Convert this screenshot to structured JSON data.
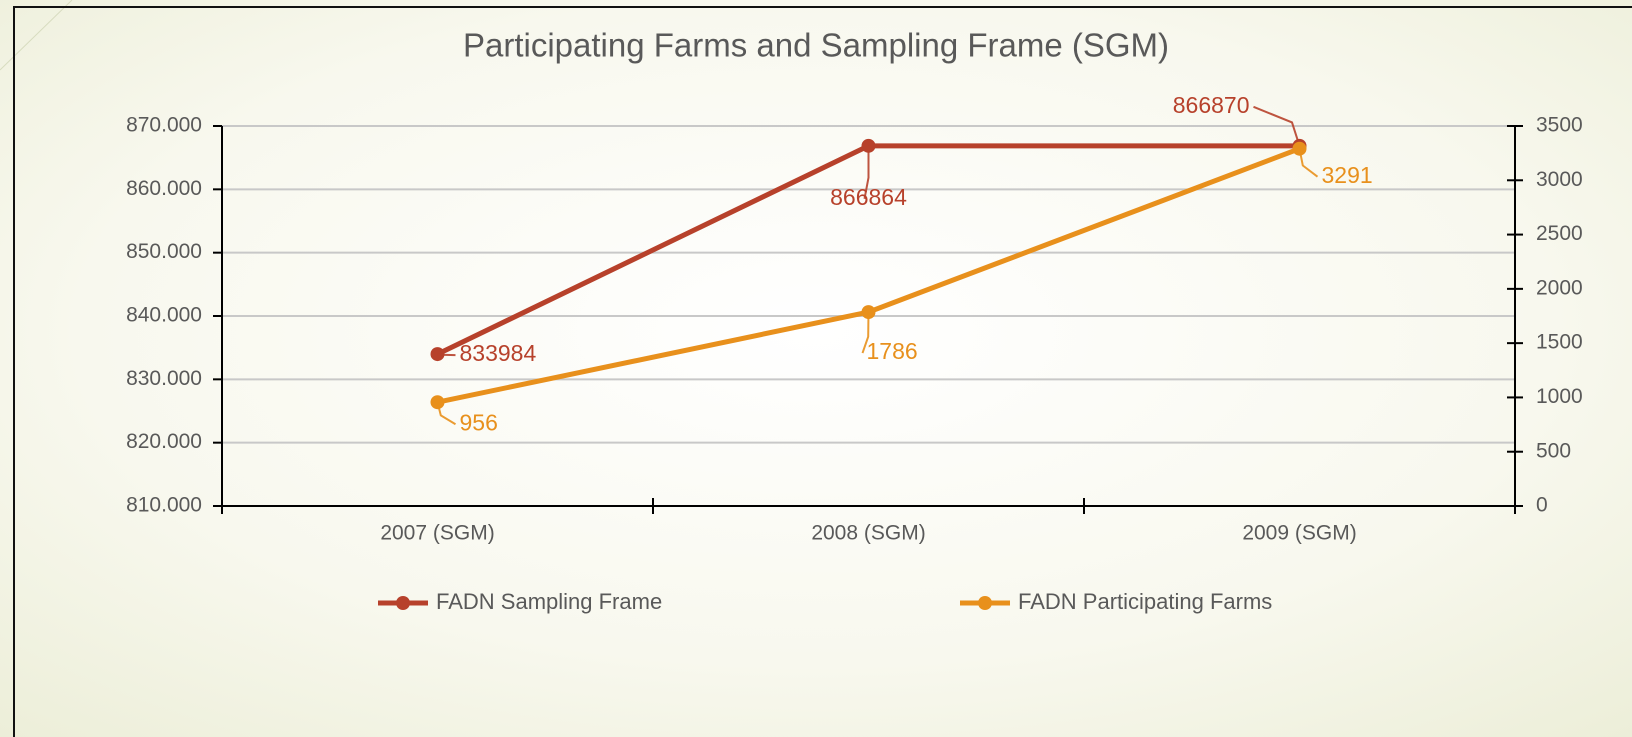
{
  "chart_data": {
    "type": "line",
    "title": "Participating Farms and Sampling Frame (SGM)",
    "categories": [
      "2007 (SGM)",
      "2008 (SGM)",
      "2009 (SGM)"
    ],
    "series": [
      {
        "name": "FADN Sampling Frame",
        "color": "#b7412b",
        "values": [
          833984,
          866864,
          866870
        ],
        "axis": "y"
      },
      {
        "name": "FADN Participating Farms",
        "color": "#e8901c",
        "values": [
          956,
          1786,
          3291
        ],
        "axis": "y2"
      }
    ],
    "ylim": [
      810000,
      870000
    ],
    "yticks": [
      {
        "value": 810000,
        "label": "810.000"
      },
      {
        "value": 820000,
        "label": "820.000"
      },
      {
        "value": 830000,
        "label": "830.000"
      },
      {
        "value": 840000,
        "label": "840.000"
      },
      {
        "value": 850000,
        "label": "850.000"
      },
      {
        "value": 860000,
        "label": "860.000"
      },
      {
        "value": 870000,
        "label": "870.000"
      }
    ],
    "y2lim": [
      0,
      3500
    ],
    "y2ticks": [
      0,
      500,
      1000,
      1500,
      2000,
      2500,
      3000,
      3500
    ],
    "grid": true,
    "legend": "bottom"
  }
}
